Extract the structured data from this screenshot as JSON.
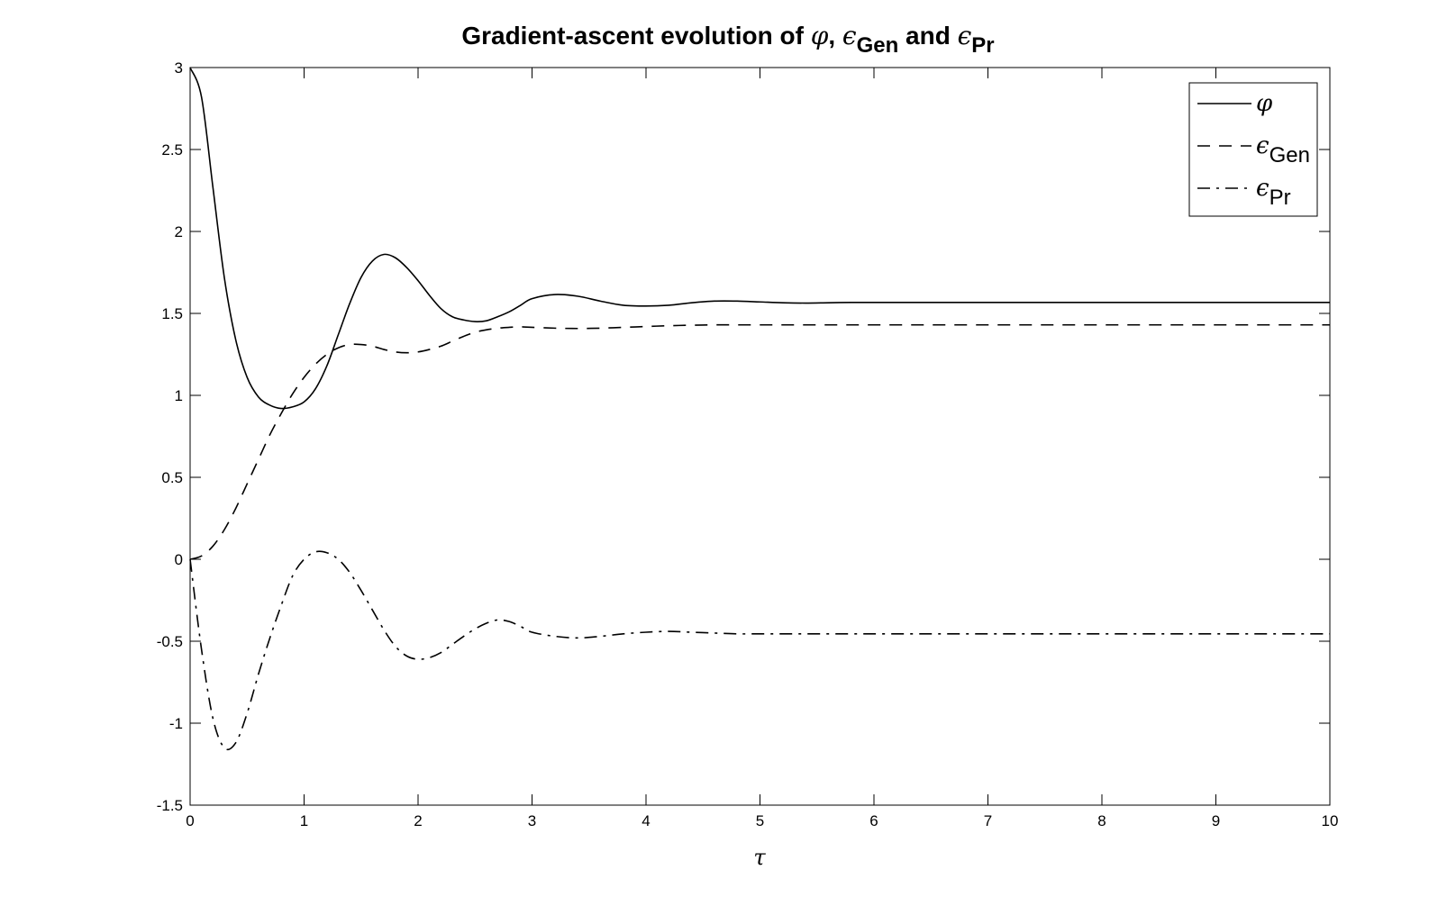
{
  "chart_data": {
    "type": "line",
    "title": {
      "prefix": "Gradient-ascent evolution of ",
      "sym1": "φ",
      "sep1": ", ",
      "sym2": "ϵ",
      "sub2": "Gen",
      "sep2": " and ",
      "sym3": "ϵ",
      "sub3": "Pr"
    },
    "xlabel": "τ",
    "ylabel": "",
    "xlim": [
      0,
      10
    ],
    "ylim": [
      -1.5,
      3
    ],
    "xticks": [
      "0",
      "1",
      "2",
      "3",
      "4",
      "5",
      "6",
      "7",
      "8",
      "9",
      "10"
    ],
    "yticks": [
      "-1.5",
      "-1",
      "-0.5",
      "0",
      "0.5",
      "1",
      "1.5",
      "2",
      "2.5",
      "3"
    ],
    "grid": false,
    "legend_position": "top-right",
    "x": [
      0,
      0.1,
      0.2,
      0.3,
      0.4,
      0.5,
      0.6,
      0.7,
      0.8,
      0.9,
      1.0,
      1.1,
      1.2,
      1.3,
      1.4,
      1.5,
      1.6,
      1.7,
      1.8,
      1.9,
      2.0,
      2.1,
      2.2,
      2.3,
      2.4,
      2.5,
      2.6,
      2.7,
      2.8,
      2.9,
      3.0,
      3.2,
      3.4,
      3.6,
      3.8,
      4.0,
      4.2,
      4.4,
      4.6,
      4.8,
      5.0,
      5.2,
      5.4,
      5.6,
      5.8,
      6.0,
      6.5,
      7.0,
      7.5,
      8.0,
      8.5,
      9.0,
      9.5,
      10.0
    ],
    "series": [
      {
        "name": "φ",
        "label_symbol": "φ",
        "label_sub": "",
        "dash": "solid",
        "values": [
          3.0,
          2.82,
          2.27,
          1.72,
          1.34,
          1.11,
          0.99,
          0.94,
          0.92,
          0.93,
          0.96,
          1.04,
          1.18,
          1.37,
          1.56,
          1.72,
          1.82,
          1.86,
          1.84,
          1.78,
          1.7,
          1.61,
          1.53,
          1.48,
          1.46,
          1.45,
          1.455,
          1.48,
          1.51,
          1.55,
          1.59,
          1.615,
          1.605,
          1.575,
          1.55,
          1.545,
          1.55,
          1.565,
          1.575,
          1.575,
          1.57,
          1.565,
          1.563,
          1.565,
          1.567,
          1.567,
          1.567,
          1.567,
          1.567,
          1.567,
          1.567,
          1.567,
          1.567,
          1.567
        ]
      },
      {
        "name": "ϵGen",
        "label_symbol": "ϵ",
        "label_sub": "Gen",
        "dash": "dashed",
        "values": [
          0.0,
          0.02,
          0.08,
          0.18,
          0.31,
          0.46,
          0.61,
          0.76,
          0.89,
          1.01,
          1.11,
          1.19,
          1.25,
          1.29,
          1.31,
          1.31,
          1.3,
          1.28,
          1.265,
          1.26,
          1.265,
          1.28,
          1.3,
          1.33,
          1.36,
          1.385,
          1.4,
          1.41,
          1.415,
          1.418,
          1.415,
          1.41,
          1.408,
          1.41,
          1.415,
          1.42,
          1.425,
          1.428,
          1.43,
          1.43,
          1.43,
          1.43,
          1.43,
          1.43,
          1.43,
          1.43,
          1.43,
          1.43,
          1.43,
          1.43,
          1.43,
          1.43,
          1.43,
          1.43
        ]
      },
      {
        "name": "ϵPr",
        "label_symbol": "ϵ",
        "label_sub": "Pr",
        "dash": "dashdot",
        "values": [
          0.0,
          -0.55,
          -0.97,
          -1.15,
          -1.12,
          -0.94,
          -0.7,
          -0.48,
          -0.28,
          -0.1,
          0.0,
          0.045,
          0.04,
          0.0,
          -0.08,
          -0.19,
          -0.31,
          -0.43,
          -0.53,
          -0.59,
          -0.61,
          -0.6,
          -0.57,
          -0.52,
          -0.47,
          -0.425,
          -0.39,
          -0.37,
          -0.38,
          -0.41,
          -0.445,
          -0.47,
          -0.48,
          -0.47,
          -0.455,
          -0.445,
          -0.44,
          -0.445,
          -0.45,
          -0.455,
          -0.455,
          -0.455,
          -0.455,
          -0.455,
          -0.455,
          -0.455,
          -0.455,
          -0.455,
          -0.455,
          -0.455,
          -0.455,
          -0.455,
          -0.455,
          -0.455
        ]
      }
    ]
  }
}
